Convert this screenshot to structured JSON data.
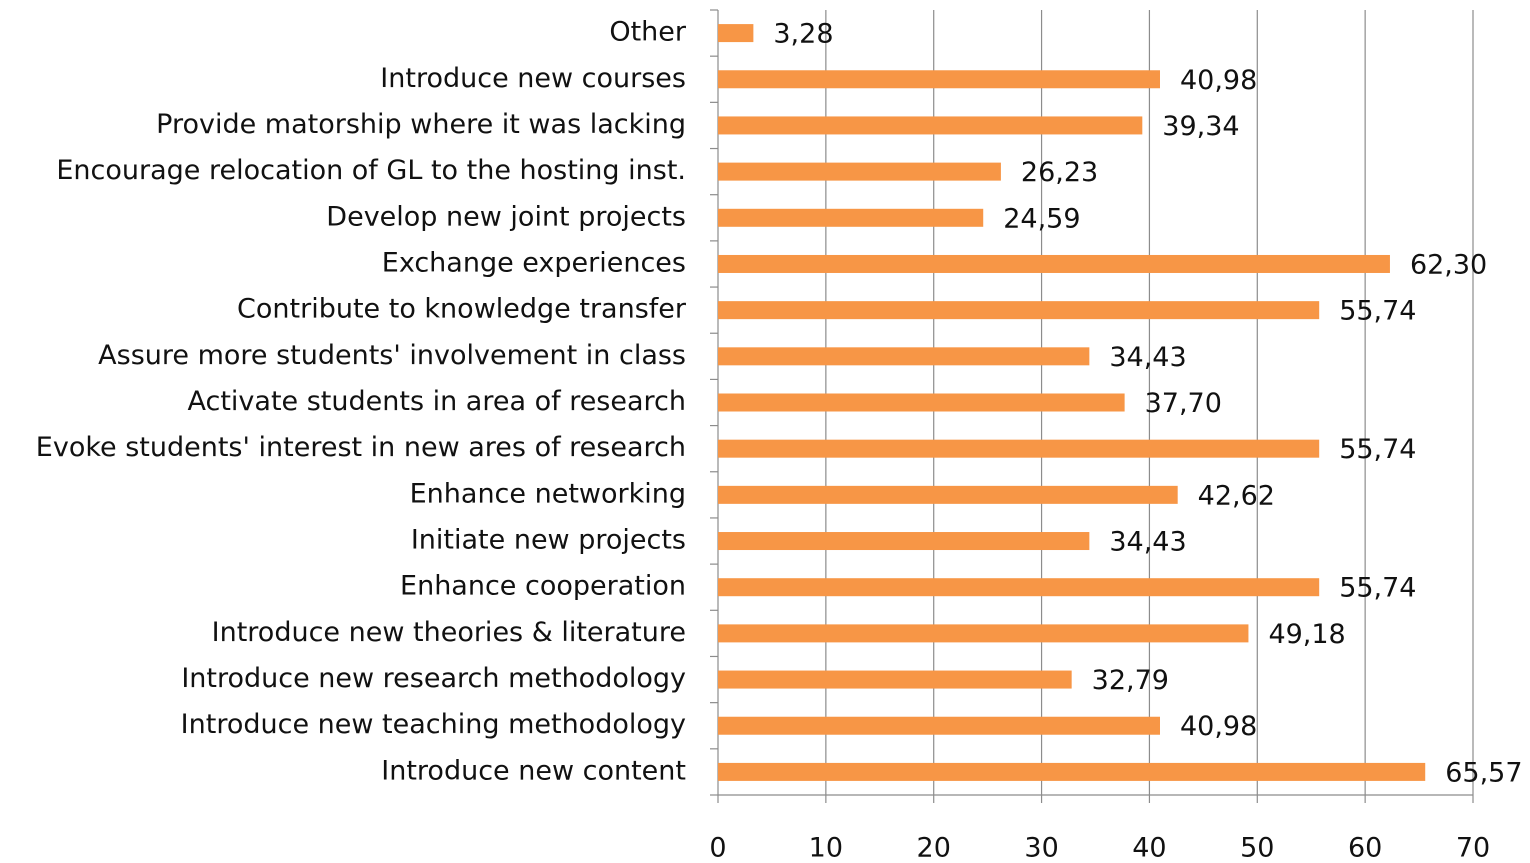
{
  "chart_data": {
    "type": "bar",
    "orientation": "horizontal",
    "categories": [
      "Other",
      "Introduce new courses",
      "Provide matorship where it was lacking",
      "Encourage relocation of GL to the hosting inst.",
      "Develop new joint projects",
      "Exchange experiences",
      "Contribute to knowledge transfer",
      "Assure more students' involvement in class",
      "Activate students in area of research",
      "Evoke students' interest in new ares of research",
      "Enhance networking",
      "Initiate new projects",
      "Enhance cooperation",
      "Introduce new theories & literature",
      "Introduce new research methodology",
      "Introduce new teaching methodology",
      "Introduce new content"
    ],
    "values": [
      3.28,
      40.98,
      39.34,
      26.23,
      24.59,
      62.3,
      55.74,
      34.43,
      37.7,
      55.74,
      42.62,
      34.43,
      55.74,
      49.18,
      32.79,
      40.98,
      65.57
    ],
    "value_labels": [
      "3,28",
      "40,98",
      "39,34",
      "26,23",
      "24,59",
      "62,30",
      "55,74",
      "34,43",
      "37,70",
      "55,74",
      "42,62",
      "34,43",
      "55,74",
      "49,18",
      "32,79",
      "40,98",
      "65,57"
    ],
    "color": "#f79646",
    "xlim": [
      0,
      70
    ],
    "xticks": [
      0,
      10,
      20,
      30,
      40,
      50,
      60,
      70
    ],
    "grid": true
  }
}
